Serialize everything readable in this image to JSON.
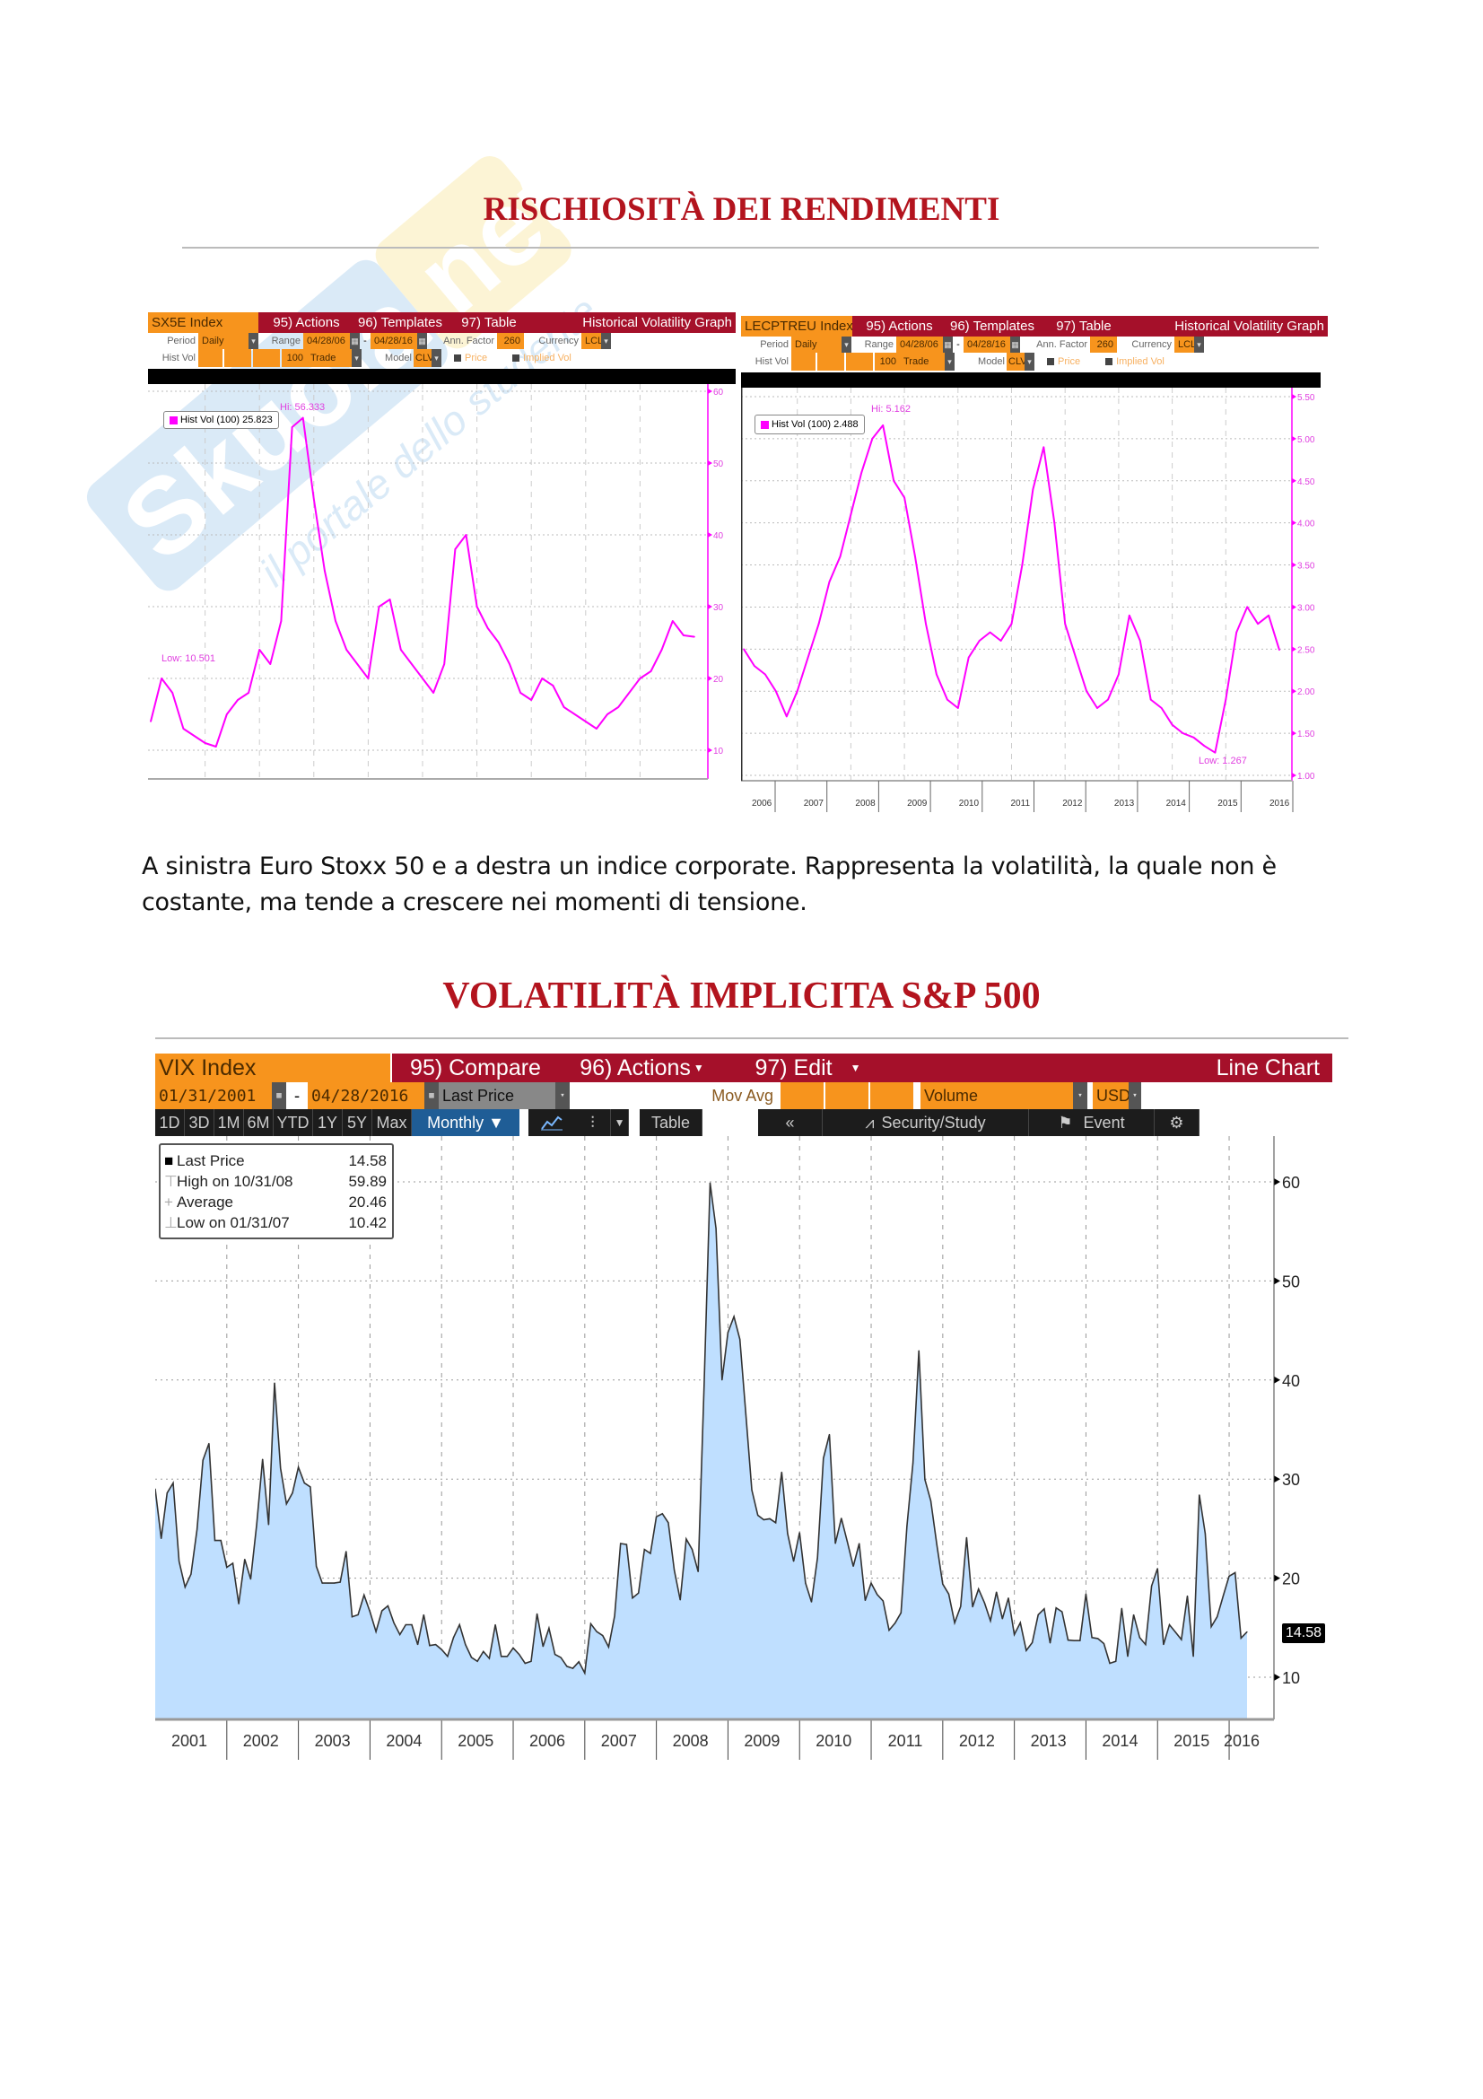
{
  "watermark": {
    "brand": "Skuola.net",
    "tagline": "il portale dello studente"
  },
  "section1": {
    "title": "RISCHIOSITÀ DEI RENDIMENTI"
  },
  "chart_left": {
    "header": {
      "ticker": "SX5E Index",
      "actions": "95) Actions",
      "templates": "96) Templates",
      "table": "97) Table",
      "view": "Historical Volatility Graph"
    },
    "row2": {
      "period_label": "Period",
      "period": "Daily",
      "range_label": "Range",
      "from": "04/28/06",
      "sep": "-",
      "to": "04/28/16",
      "ann_label": "Ann. Factor",
      "ann": "260",
      "cur_label": "Currency",
      "cur": "LCL"
    },
    "row3": {
      "hv_label": "Hist Vol",
      "hv": "100",
      "trade": "Trade",
      "model_label": "Model",
      "model": "CLV",
      "price": "Price",
      "implied": "Implied Vol"
    },
    "legend": "Hist Vol (100) 25.823",
    "hi_label": "Hi: 56.333",
    "low_label": "Low: 10.501"
  },
  "chart_right": {
    "header": {
      "ticker": "LECPTREU Index",
      "actions": "95) Actions",
      "templates": "96) Templates",
      "table": "97) Table",
      "view": "Historical Volatility Graph"
    },
    "row2": {
      "period_label": "Period",
      "period": "Daily",
      "range_label": "Range",
      "from": "04/28/06",
      "sep": "-",
      "to": "04/28/16",
      "ann_label": "Ann. Factor",
      "ann": "260",
      "cur_label": "Currency",
      "cur": "LCL"
    },
    "row3": {
      "hv_label": "Hist Vol",
      "hv": "100",
      "trade": "Trade",
      "model_label": "Model",
      "model": "CLV",
      "price": "Price",
      "implied": "Implied Vol"
    },
    "legend": "Hist Vol (100) 2.488",
    "hi_label": "Hi: 5.162",
    "low_label": "Low: 1.267"
  },
  "paragraph": "A sinistra Euro Stoxx 50 e a destra un indice corporate. Rappresenta la volatilità, la quale non è costante, ma tende a crescere nei momenti di tensione.",
  "section2": {
    "title": "VOLATILITÀ IMPLICITA S&P 500"
  },
  "vix": {
    "header": {
      "ticker": "VIX Index",
      "compare": "95) Compare",
      "actions": "96) Actions",
      "edit": "97) Edit",
      "view": "Line Chart"
    },
    "row2": {
      "from": "01/31/2001",
      "sep": "-",
      "to": "04/28/2016",
      "field": "Last Price",
      "movavg": "Mov Avg",
      "volume": "Volume",
      "currency": "USD"
    },
    "row3": {
      "periods": [
        "1D",
        "3D",
        "1M",
        "6M",
        "YTD",
        "1Y",
        "5Y",
        "Max"
      ],
      "freq": "Monthly ▼",
      "table": "Table",
      "back": "«",
      "study": "Security/Study",
      "event": "Event"
    },
    "legend": [
      {
        "label": "Last Price",
        "value": "14.58"
      },
      {
        "label": "High on 10/31/08",
        "value": "59.89"
      },
      {
        "label": "Average",
        "value": "20.46"
      },
      {
        "label": "Low on 01/31/07",
        "value": "10.42"
      }
    ],
    "last_tag": "14.58"
  },
  "colors": {
    "accent": "#b3141e",
    "magenta": "#ff00ff",
    "vix_fill": "#bfdfff",
    "orange": "#f7941d",
    "red": "#a5102a"
  },
  "chart_data": [
    {
      "type": "line",
      "title": "SX5E Index Historical Volatility (100)",
      "x_start": 2006.33,
      "x_step": 0.2,
      "ylim": [
        10,
        60
      ],
      "yticks": [
        10,
        20,
        30,
        40,
        50,
        60
      ],
      "values": [
        14,
        20,
        18,
        13,
        12,
        11,
        10.5,
        15,
        17,
        18,
        24,
        22,
        28,
        55,
        56.3,
        45,
        35,
        28,
        24,
        22,
        20,
        30,
        31,
        24,
        22,
        20,
        18,
        22,
        38,
        40,
        30,
        27,
        25,
        22,
        18,
        17,
        20,
        19,
        16,
        15,
        14,
        13,
        15,
        16,
        18,
        20,
        21,
        24,
        28,
        26,
        25.8
      ]
    },
    {
      "type": "line",
      "title": "LECPTREU Index Historical Volatility (100)",
      "x_start": 2006.33,
      "x_step": 0.2,
      "ylim": [
        1,
        5.5
      ],
      "yticks": [
        "1.00",
        "1.50",
        "2.00",
        "2.50",
        "3.00",
        "3.50",
        "4.00",
        "4.50",
        "5.00",
        "5.50"
      ],
      "xticks": [
        "2006",
        "2007",
        "2008",
        "2009",
        "2010",
        "2011",
        "2012",
        "2013",
        "2014",
        "2015",
        "2016"
      ],
      "values": [
        2.5,
        2.3,
        2.2,
        2.0,
        1.7,
        2.0,
        2.4,
        2.8,
        3.3,
        3.6,
        4.1,
        4.6,
        5.0,
        5.16,
        4.5,
        4.3,
        3.6,
        2.8,
        2.2,
        1.9,
        1.8,
        2.4,
        2.6,
        2.7,
        2.6,
        2.8,
        3.5,
        4.4,
        4.9,
        4.0,
        2.8,
        2.4,
        2.0,
        1.8,
        1.9,
        2.2,
        2.9,
        2.6,
        1.9,
        1.8,
        1.6,
        1.5,
        1.45,
        1.35,
        1.27,
        1.9,
        2.7,
        3.0,
        2.8,
        2.9,
        2.49
      ]
    },
    {
      "type": "area",
      "title": "VIX Index Monthly Last Price",
      "x_start": "2001-01",
      "frequency": "monthly",
      "ylim": [
        5,
        65
      ],
      "yticks": [
        10,
        20,
        30,
        40,
        50,
        60
      ],
      "xticks": [
        "2001",
        "2002",
        "2003",
        "2004",
        "2005",
        "2006",
        "2007",
        "2008",
        "2009",
        "2010",
        "2011",
        "2012",
        "2013",
        "2014",
        "2015",
        "2016"
      ],
      "values": [
        29.0,
        24.0,
        28.6,
        29.6,
        21.7,
        19.1,
        20.4,
        24.9,
        31.9,
        33.6,
        23.8,
        23.8,
        21.1,
        21.5,
        17.4,
        21.9,
        19.9,
        25.4,
        32.0,
        25.4,
        39.7,
        31.1,
        27.5,
        28.6,
        31.2,
        29.6,
        29.2,
        21.2,
        19.5,
        19.5,
        19.5,
        19.6,
        22.7,
        16.1,
        16.3,
        18.3,
        16.6,
        14.6,
        16.7,
        17.2,
        15.5,
        14.3,
        15.3,
        15.3,
        13.3,
        16.3,
        13.2,
        13.3,
        12.8,
        12.1,
        14.0,
        15.3,
        13.3,
        12.0,
        11.6,
        12.6,
        11.9,
        15.3,
        12.1,
        12.1,
        12.95,
        12.3,
        11.4,
        11.6,
        16.4,
        13.1,
        14.95,
        12.3,
        11.98,
        11.1,
        10.9,
        11.56,
        10.42,
        15.4,
        14.6,
        14.2,
        13.05,
        16.2,
        23.5,
        23.4,
        18.0,
        18.5,
        22.9,
        22.5,
        26.2,
        26.5,
        25.6,
        20.8,
        17.8,
        23.95,
        22.9,
        20.65,
        39.4,
        59.89,
        55.3,
        40.0,
        44.8,
        46.4,
        44.1,
        36.5,
        28.9,
        26.35,
        25.9,
        26.0,
        25.6,
        30.7,
        24.5,
        21.7,
        24.6,
        19.5,
        17.6,
        22.05,
        32.1,
        34.5,
        23.5,
        26.05,
        23.7,
        21.2,
        23.5,
        17.75,
        19.5,
        18.35,
        17.7,
        14.75,
        15.45,
        16.5,
        25.25,
        31.6,
        42.96,
        29.96,
        27.8,
        23.4,
        19.4,
        18.4,
        15.5,
        17.15,
        24.1,
        17.1,
        18.9,
        17.5,
        15.7,
        18.6,
        15.9,
        18.0,
        14.3,
        15.5,
        12.7,
        13.5,
        16.3,
        16.9,
        13.45,
        17.0,
        16.6,
        13.75,
        13.7,
        13.7,
        18.4,
        14.0,
        13.9,
        13.4,
        11.4,
        11.6,
        16.95,
        12.1,
        16.3,
        14.0,
        13.3,
        19.2,
        20.97,
        13.3,
        15.3,
        14.55,
        13.8,
        18.2,
        12.1,
        28.4,
        24.5,
        15.1,
        16.1,
        18.2,
        20.2,
        20.55,
        13.95,
        14.58
      ]
    }
  ]
}
